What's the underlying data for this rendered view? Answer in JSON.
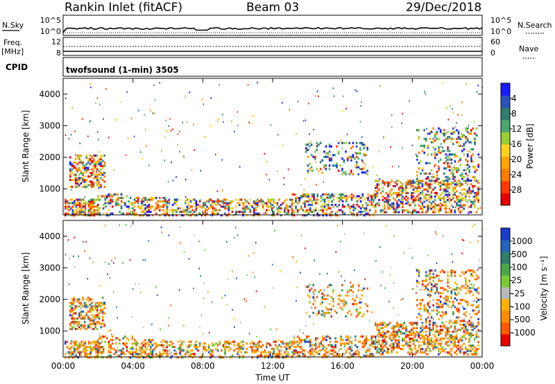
{
  "header": {
    "station": "Rankin Inlet (fitACF)",
    "beam": "Beam 03",
    "date": "29/Dec/2018"
  },
  "left_labels": {
    "nsky": "N.Sky",
    "freq": "Freq.",
    "freq_unit": "[MHz]",
    "cpid": "CPID"
  },
  "right_labels": {
    "nsearch": "N.Search",
    "nave": "Nave"
  },
  "cpid_text": "twofsound (1-min) 3505",
  "noise_panel": {
    "ticks_left": [
      "10^5",
      "10^0"
    ],
    "ticks_right": [
      "10^5",
      "10^0"
    ]
  },
  "freq_panel": {
    "ticks_left": [
      "12",
      "8"
    ],
    "ticks_right": [
      "60",
      "0"
    ]
  },
  "chart_data": [
    {
      "type": "heatmap",
      "panel": "power",
      "ylabel": "Slant Range [km]",
      "ylim": [
        180,
        4500
      ],
      "yticks": [
        "1000",
        "2000",
        "3000",
        "4000"
      ],
      "xticks": [
        "00:00",
        "04:00",
        "08:00",
        "12:00",
        "16:00",
        "20:00",
        "00:00"
      ],
      "colorbar_label": "Power [dB]",
      "colorbar_ticks": [
        "4",
        "8",
        "12",
        "16",
        "20",
        "24",
        "28"
      ],
      "colorbar_colors": [
        "#1a1aff",
        "#2a52b8",
        "#2e7d6f",
        "#4aa86e",
        "#9acd32",
        "#ffd21a",
        "#ffa500",
        "#ff7a00",
        "#ff3a00",
        "#e80000"
      ]
    },
    {
      "type": "heatmap",
      "panel": "velocity",
      "ylabel": "Slant Range [km]",
      "ylim": [
        180,
        4500
      ],
      "yticks": [
        "1000",
        "2000",
        "3000",
        "4000"
      ],
      "xticks": [
        "00:00",
        "04:00",
        "08:00",
        "12:00",
        "16:00",
        "20:00",
        "00:00"
      ],
      "xlabel": "Time UT",
      "colorbar_label": "Velocity [m s⁻¹]",
      "colorbar_ticks": [
        "1000",
        "500",
        "100",
        "25",
        "-25",
        "-100",
        "-500",
        "-1000"
      ],
      "colorbar_colors": [
        "#1a3acc",
        "#2266bb",
        "#2e7d6f",
        "#4aa84a",
        "#7acc33",
        "#b8b8b8",
        "#ffb000",
        "#ff8c00",
        "#ff5a00",
        "#e80000"
      ]
    }
  ]
}
